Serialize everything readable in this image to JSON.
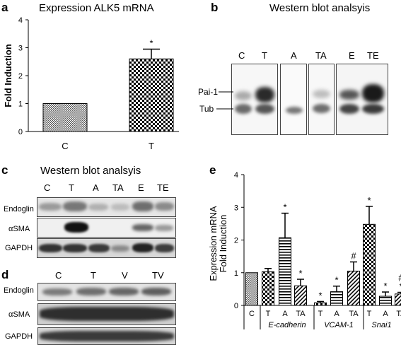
{
  "panel_a": {
    "letter": "a",
    "title": "Expression ALK5 mRNA",
    "chart_data": {
      "type": "bar",
      "categories": [
        "C",
        "T"
      ],
      "values": [
        1.0,
        2.6
      ],
      "errors": [
        0,
        0.35
      ],
      "significance": [
        "",
        "*"
      ],
      "ylabel": "Fold Induction",
      "xlabel": "",
      "ylim": [
        0,
        4
      ],
      "yticks": [
        "0",
        "1",
        "2",
        "3",
        "4"
      ]
    }
  },
  "panel_b": {
    "letter": "b",
    "title": "Western blot analsyis",
    "lanes": [
      "C",
      "T",
      "A",
      "TA",
      "E",
      "TE"
    ],
    "rows": [
      "Pai-1",
      "Tub"
    ]
  },
  "panel_c": {
    "letter": "c",
    "title": "Western blot analsyis",
    "lanes": [
      "C",
      "T",
      "A",
      "TA",
      "E",
      "TE"
    ],
    "rows": [
      "Endoglin",
      "αSMA",
      "GAPDH"
    ]
  },
  "panel_d": {
    "letter": "d",
    "lanes": [
      "C",
      "T",
      "V",
      "TV"
    ],
    "rows": [
      "Endoglin",
      "αSMA",
      "GAPDH"
    ]
  },
  "panel_e": {
    "letter": "e",
    "chart_data": {
      "type": "bar",
      "categories": [
        "C",
        "T",
        "A",
        "TA",
        "T",
        "A",
        "TA",
        "T",
        "A",
        "TA"
      ],
      "groups": [
        {
          "name": "",
          "categories": [
            "C"
          ]
        },
        {
          "name": "E-cadherin",
          "categories": [
            "T",
            "A",
            "TA"
          ]
        },
        {
          "name": "VCAM-1",
          "categories": [
            "T",
            "A",
            "TA"
          ]
        },
        {
          "name": "Snai1",
          "categories": [
            "T",
            "A",
            "TA"
          ]
        }
      ],
      "values": [
        1.0,
        1.03,
        2.07,
        0.6,
        0.08,
        0.42,
        1.05,
        2.48,
        0.28,
        0.35
      ],
      "errors": [
        0,
        0.1,
        0.75,
        0.2,
        0.04,
        0.17,
        0.28,
        0.55,
        0.13,
        0.05
      ],
      "significance": [
        "",
        "",
        "*",
        "*",
        "*",
        "*",
        "#",
        "*",
        "*",
        "# *"
      ],
      "ylabel": "Expression mRNA Fold Induction",
      "ylim": [
        0,
        4
      ],
      "yticks": [
        "0",
        "1",
        "2",
        "3",
        "4"
      ]
    }
  }
}
